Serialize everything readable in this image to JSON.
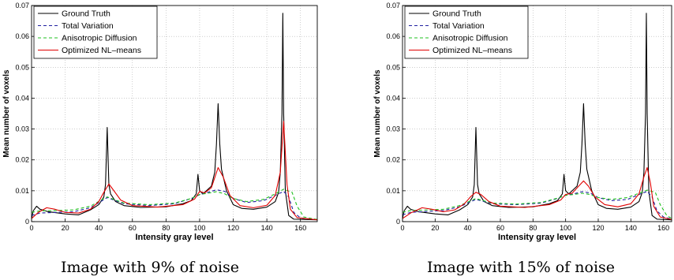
{
  "chart_data": [
    {
      "type": "line",
      "caption": "Image with 9% of noise",
      "xlabel": "Intensity gray level",
      "ylabel": "Mean number of voxels",
      "xlim": [
        0,
        170
      ],
      "ylim": [
        0,
        0.07
      ],
      "xticks": [
        "0",
        "20",
        "40",
        "60",
        "80",
        "100",
        "120",
        "140",
        "160"
      ],
      "yticks": [
        "0",
        "0.01",
        "0.02",
        "0.03",
        "0.04",
        "0.05",
        "0.06",
        "0.07"
      ],
      "grid": true,
      "legend_position": "top-left",
      "series": [
        {
          "name": "Ground Truth",
          "color": "#000000",
          "dash": "solid",
          "points": [
            [
              0,
              0.001
            ],
            [
              1,
              0.0035
            ],
            [
              3,
              0.005
            ],
            [
              5,
              0.004
            ],
            [
              10,
              0.0032
            ],
            [
              20,
              0.0025
            ],
            [
              28,
              0.0022
            ],
            [
              35,
              0.0038
            ],
            [
              40,
              0.0055
            ],
            [
              43,
              0.008
            ],
            [
              44,
              0.012
            ],
            [
              45,
              0.0305
            ],
            [
              46,
              0.012
            ],
            [
              47,
              0.009
            ],
            [
              50,
              0.0065
            ],
            [
              55,
              0.0052
            ],
            [
              65,
              0.0046
            ],
            [
              80,
              0.0048
            ],
            [
              90,
              0.0058
            ],
            [
              95,
              0.0068
            ],
            [
              98,
              0.009
            ],
            [
              99,
              0.0153
            ],
            [
              100,
              0.01
            ],
            [
              102,
              0.009
            ],
            [
              107,
              0.0115
            ],
            [
              109,
              0.016
            ],
            [
              110,
              0.025
            ],
            [
              111,
              0.0382
            ],
            [
              112,
              0.025
            ],
            [
              113,
              0.017
            ],
            [
              116,
              0.01
            ],
            [
              120,
              0.0055
            ],
            [
              125,
              0.0043
            ],
            [
              132,
              0.004
            ],
            [
              140,
              0.0047
            ],
            [
              145,
              0.0065
            ],
            [
              147,
              0.0095
            ],
            [
              148,
              0.016
            ],
            [
              149,
              0.035
            ],
            [
              149.5,
              0.0675
            ],
            [
              150,
              0.035
            ],
            [
              151,
              0.01
            ],
            [
              153,
              0.002
            ],
            [
              156,
              0.0008
            ],
            [
              170,
              0.0006
            ]
          ]
        },
        {
          "name": "Total Variation",
          "color": "#2020a0",
          "dash": "dashed",
          "points": [
            [
              0,
              0.002
            ],
            [
              5,
              0.0028
            ],
            [
              15,
              0.003
            ],
            [
              25,
              0.0032
            ],
            [
              35,
              0.0045
            ],
            [
              42,
              0.0068
            ],
            [
              45,
              0.0078
            ],
            [
              48,
              0.0072
            ],
            [
              55,
              0.0058
            ],
            [
              70,
              0.0052
            ],
            [
              85,
              0.0058
            ],
            [
              95,
              0.0075
            ],
            [
              100,
              0.0087
            ],
            [
              105,
              0.0095
            ],
            [
              110,
              0.0103
            ],
            [
              115,
              0.0098
            ],
            [
              120,
              0.0075
            ],
            [
              128,
              0.0062
            ],
            [
              138,
              0.0068
            ],
            [
              145,
              0.0085
            ],
            [
              150,
              0.0098
            ],
            [
              153,
              0.008
            ],
            [
              156,
              0.003
            ],
            [
              160,
              0.0012
            ],
            [
              170,
              0.0006
            ]
          ]
        },
        {
          "name": "Anisotropic Diffusion",
          "color": "#20c020",
          "dash": "dashed",
          "points": [
            [
              0,
              0.003
            ],
            [
              5,
              0.0035
            ],
            [
              15,
              0.0036
            ],
            [
              25,
              0.0038
            ],
            [
              35,
              0.005
            ],
            [
              42,
              0.0072
            ],
            [
              45,
              0.008
            ],
            [
              48,
              0.0074
            ],
            [
              55,
              0.006
            ],
            [
              70,
              0.0055
            ],
            [
              85,
              0.006
            ],
            [
              95,
              0.0075
            ],
            [
              100,
              0.0088
            ],
            [
              105,
              0.0092
            ],
            [
              110,
              0.0097
            ],
            [
              115,
              0.009
            ],
            [
              120,
              0.0075
            ],
            [
              128,
              0.0065
            ],
            [
              138,
              0.0072
            ],
            [
              145,
              0.009
            ],
            [
              150,
              0.0105
            ],
            [
              155,
              0.0095
            ],
            [
              158,
              0.005
            ],
            [
              162,
              0.0015
            ],
            [
              170,
              0.0007
            ]
          ]
        },
        {
          "name": "Optimized NL–means",
          "color": "#e00000",
          "dash": "solid",
          "points": [
            [
              0,
              0.001
            ],
            [
              4,
              0.003
            ],
            [
              9,
              0.0045
            ],
            [
              14,
              0.004
            ],
            [
              20,
              0.003
            ],
            [
              28,
              0.0028
            ],
            [
              35,
              0.004
            ],
            [
              40,
              0.0065
            ],
            [
              43,
              0.0095
            ],
            [
              46,
              0.0122
            ],
            [
              49,
              0.01
            ],
            [
              53,
              0.007
            ],
            [
              60,
              0.0052
            ],
            [
              75,
              0.0047
            ],
            [
              90,
              0.0055
            ],
            [
              97,
              0.0073
            ],
            [
              100,
              0.0098
            ],
            [
              103,
              0.0093
            ],
            [
              107,
              0.011
            ],
            [
              111,
              0.0175
            ],
            [
              114,
              0.0145
            ],
            [
              118,
              0.0085
            ],
            [
              124,
              0.0052
            ],
            [
              132,
              0.0045
            ],
            [
              140,
              0.0053
            ],
            [
              145,
              0.0085
            ],
            [
              148,
              0.016
            ],
            [
              150,
              0.0325
            ],
            [
              152,
              0.012
            ],
            [
              154,
              0.004
            ],
            [
              158,
              0.0013
            ],
            [
              170,
              0.0006
            ]
          ]
        }
      ]
    },
    {
      "type": "line",
      "caption": "Image with 15% of noise",
      "xlabel": "Intensity gray level",
      "ylabel": "Mean number of voxels",
      "xlim": [
        0,
        165
      ],
      "ylim": [
        0,
        0.07
      ],
      "xticks": [
        "0",
        "20",
        "40",
        "60",
        "80",
        "100",
        "120",
        "140",
        "160"
      ],
      "yticks": [
        "0",
        "0.01",
        "0.02",
        "0.03",
        "0.04",
        "0.05",
        "0.06",
        "0.07"
      ],
      "grid": true,
      "legend_position": "top-left",
      "series": [
        {
          "name": "Ground Truth",
          "color": "#000000",
          "dash": "solid",
          "points": [
            [
              0,
              0.001
            ],
            [
              1,
              0.0035
            ],
            [
              3,
              0.005
            ],
            [
              5,
              0.004
            ],
            [
              10,
              0.0032
            ],
            [
              20,
              0.0025
            ],
            [
              28,
              0.0022
            ],
            [
              35,
              0.0038
            ],
            [
              40,
              0.0055
            ],
            [
              43,
              0.008
            ],
            [
              44,
              0.012
            ],
            [
              45,
              0.0305
            ],
            [
              46,
              0.012
            ],
            [
              47,
              0.009
            ],
            [
              50,
              0.0065
            ],
            [
              55,
              0.0052
            ],
            [
              65,
              0.0046
            ],
            [
              80,
              0.0048
            ],
            [
              90,
              0.0058
            ],
            [
              95,
              0.0068
            ],
            [
              98,
              0.009
            ],
            [
              99,
              0.0153
            ],
            [
              100,
              0.01
            ],
            [
              102,
              0.009
            ],
            [
              107,
              0.0115
            ],
            [
              109,
              0.016
            ],
            [
              110,
              0.025
            ],
            [
              111,
              0.0382
            ],
            [
              112,
              0.025
            ],
            [
              113,
              0.017
            ],
            [
              116,
              0.01
            ],
            [
              120,
              0.0055
            ],
            [
              125,
              0.0043
            ],
            [
              132,
              0.004
            ],
            [
              140,
              0.0047
            ],
            [
              145,
              0.0065
            ],
            [
              147,
              0.0095
            ],
            [
              148,
              0.016
            ],
            [
              149,
              0.035
            ],
            [
              149.5,
              0.0675
            ],
            [
              150,
              0.035
            ],
            [
              151,
              0.01
            ],
            [
              153,
              0.002
            ],
            [
              156,
              0.0008
            ],
            [
              165,
              0.0006
            ]
          ]
        },
        {
          "name": "Total Variation",
          "color": "#2020a0",
          "dash": "dashed",
          "points": [
            [
              0,
              0.0022
            ],
            [
              5,
              0.003
            ],
            [
              15,
              0.0033
            ],
            [
              25,
              0.0036
            ],
            [
              35,
              0.0048
            ],
            [
              42,
              0.0065
            ],
            [
              45,
              0.0072
            ],
            [
              48,
              0.0068
            ],
            [
              55,
              0.0058
            ],
            [
              70,
              0.0055
            ],
            [
              85,
              0.006
            ],
            [
              95,
              0.0075
            ],
            [
              100,
              0.0085
            ],
            [
              105,
              0.009
            ],
            [
              110,
              0.0097
            ],
            [
              115,
              0.0093
            ],
            [
              120,
              0.0078
            ],
            [
              128,
              0.0068
            ],
            [
              138,
              0.0072
            ],
            [
              145,
              0.0088
            ],
            [
              150,
              0.0098
            ],
            [
              153,
              0.008
            ],
            [
              156,
              0.0035
            ],
            [
              160,
              0.0015
            ],
            [
              165,
              0.0008
            ]
          ]
        },
        {
          "name": "Anisotropic Diffusion",
          "color": "#20c020",
          "dash": "dashed",
          "points": [
            [
              0,
              0.003
            ],
            [
              5,
              0.0036
            ],
            [
              15,
              0.0038
            ],
            [
              25,
              0.004
            ],
            [
              35,
              0.0052
            ],
            [
              42,
              0.0068
            ],
            [
              45,
              0.0075
            ],
            [
              48,
              0.007
            ],
            [
              55,
              0.006
            ],
            [
              70,
              0.0057
            ],
            [
              85,
              0.0062
            ],
            [
              95,
              0.0076
            ],
            [
              100,
              0.0085
            ],
            [
              105,
              0.0088
            ],
            [
              110,
              0.0092
            ],
            [
              115,
              0.0088
            ],
            [
              120,
              0.0078
            ],
            [
              128,
              0.0072
            ],
            [
              138,
              0.0078
            ],
            [
              145,
              0.0092
            ],
            [
              150,
              0.0102
            ],
            [
              155,
              0.0095
            ],
            [
              158,
              0.0055
            ],
            [
              162,
              0.002
            ],
            [
              165,
              0.001
            ]
          ]
        },
        {
          "name": "Optimized NL–means",
          "color": "#e00000",
          "dash": "solid",
          "points": [
            [
              0,
              0.001
            ],
            [
              5,
              0.0028
            ],
            [
              12,
              0.0045
            ],
            [
              18,
              0.004
            ],
            [
              25,
              0.0032
            ],
            [
              32,
              0.0038
            ],
            [
              38,
              0.0058
            ],
            [
              42,
              0.0082
            ],
            [
              45,
              0.0095
            ],
            [
              48,
              0.0088
            ],
            [
              53,
              0.0065
            ],
            [
              60,
              0.005
            ],
            [
              75,
              0.0046
            ],
            [
              90,
              0.0055
            ],
            [
              97,
              0.007
            ],
            [
              100,
              0.0088
            ],
            [
              104,
              0.0092
            ],
            [
              108,
              0.0115
            ],
            [
              111,
              0.0132
            ],
            [
              114,
              0.0115
            ],
            [
              118,
              0.008
            ],
            [
              124,
              0.0055
            ],
            [
              132,
              0.0048
            ],
            [
              140,
              0.0058
            ],
            [
              145,
              0.009
            ],
            [
              148,
              0.0145
            ],
            [
              150,
              0.0175
            ],
            [
              152,
              0.0125
            ],
            [
              154,
              0.005
            ],
            [
              158,
              0.0015
            ],
            [
              165,
              0.0007
            ]
          ]
        }
      ]
    }
  ]
}
